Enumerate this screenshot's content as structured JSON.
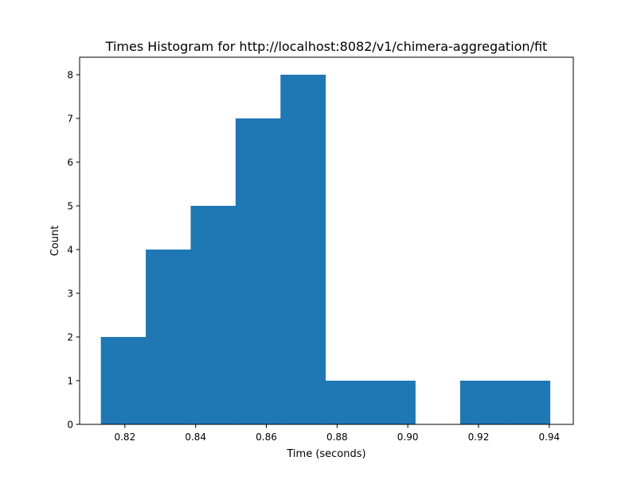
{
  "chart_data": {
    "type": "bar",
    "title": "Times Histogram for http://localhost:8082/v1/chimera-aggregation/fit",
    "xlabel": "Time (seconds)",
    "ylabel": "Count",
    "xlim": [
      0.8072,
      0.9468
    ],
    "ylim": [
      0,
      8.4
    ],
    "bin_edges": [
      0.8132,
      0.8259,
      0.8386,
      0.8513,
      0.864,
      0.8767,
      0.8894,
      0.9021,
      0.9148,
      0.9275,
      0.9402
    ],
    "counts": [
      2,
      4,
      5,
      7,
      8,
      1,
      1,
      0,
      1,
      1
    ],
    "x_ticks": [
      0.82,
      0.84,
      0.86,
      0.88,
      0.9,
      0.92,
      0.94
    ],
    "x_tick_labels": [
      "0.82",
      "0.84",
      "0.86",
      "0.88",
      "0.90",
      "0.92",
      "0.94"
    ],
    "y_ticks": [
      0,
      1,
      2,
      3,
      4,
      5,
      6,
      7,
      8
    ],
    "y_tick_labels": [
      "0",
      "1",
      "2",
      "3",
      "4",
      "5",
      "6",
      "7",
      "8"
    ],
    "bar_color": "#1f77b4",
    "grid": false,
    "legend": false
  }
}
